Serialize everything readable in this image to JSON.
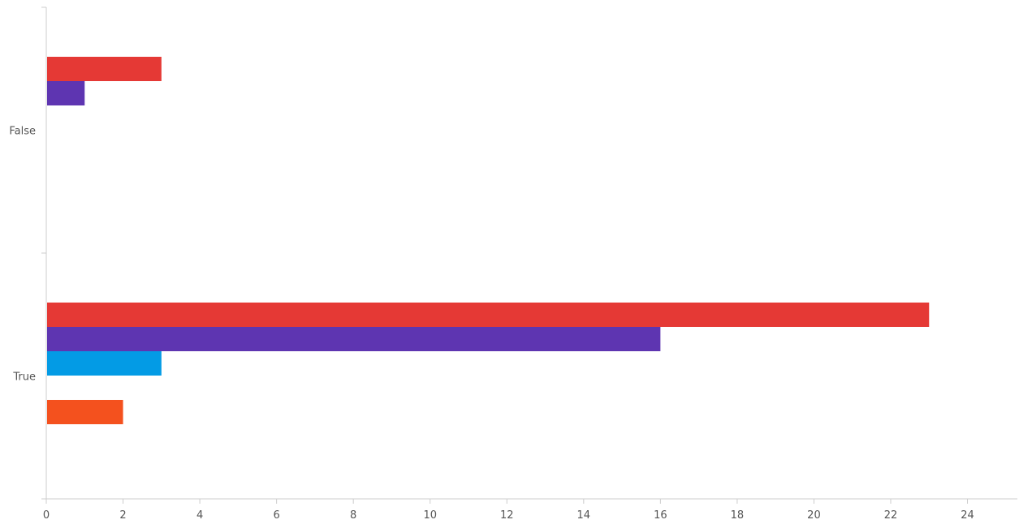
{
  "chart_data": {
    "type": "bar",
    "orientation": "horizontal",
    "title": "",
    "xlabel": "",
    "ylabel": "",
    "categories": [
      "False",
      "True"
    ],
    "xlim": [
      0,
      25.3
    ],
    "xticks": [
      0,
      2,
      4,
      6,
      8,
      10,
      12,
      14,
      16,
      18,
      20,
      22,
      24
    ],
    "grid": false,
    "legend": "none",
    "series": [
      {
        "color": "#e53935",
        "values": [
          3,
          23
        ]
      },
      {
        "color": "#5e35b1",
        "values": [
          1,
          16
        ]
      },
      {
        "color": "#039be5",
        "values": [
          0,
          3
        ]
      },
      {
        "color": "#ffffff",
        "values": [
          0,
          0
        ]
      },
      {
        "color": "#f4511e",
        "values": [
          0,
          2
        ]
      }
    ]
  }
}
